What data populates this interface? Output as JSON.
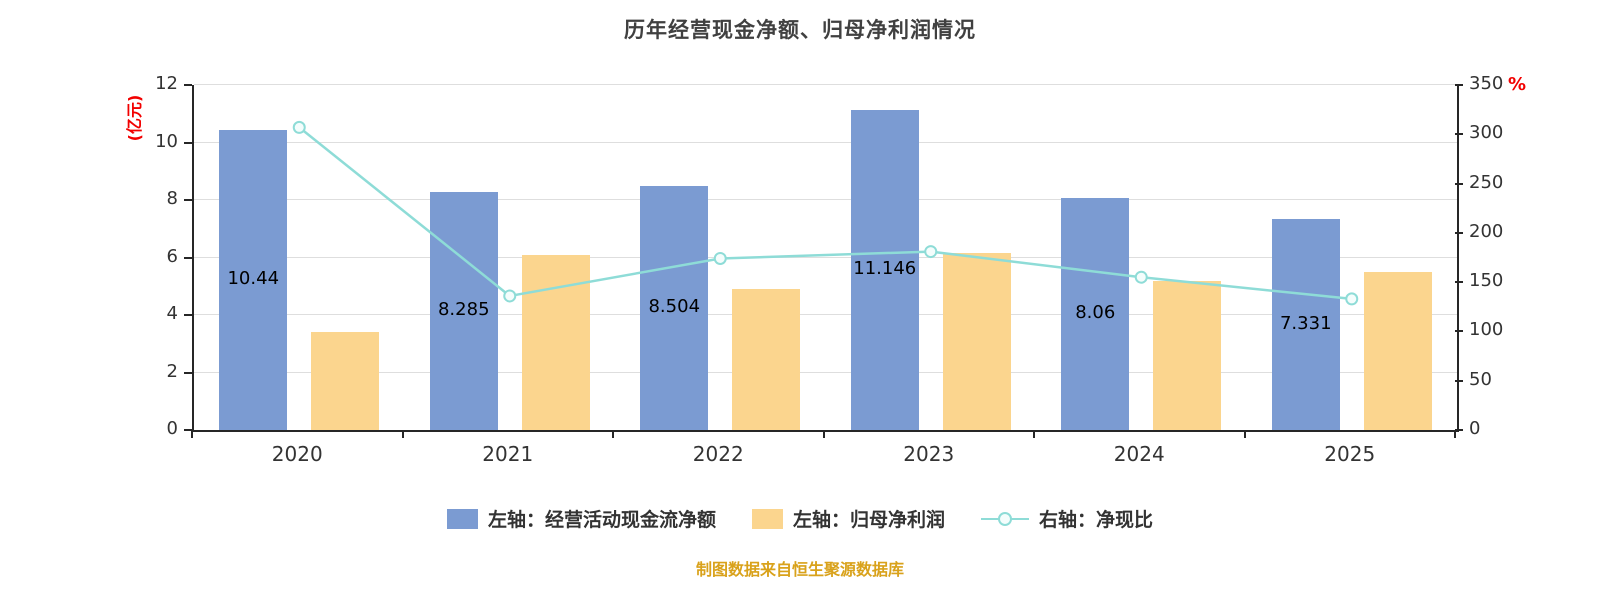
{
  "title": "历年经营现金净额、归母净利润情况",
  "footer": "制图数据来自恒生聚源数据库",
  "left_axis": {
    "title": "(亿元)",
    "ticks": [
      0,
      2,
      4,
      6,
      8,
      10,
      12
    ],
    "max": 12
  },
  "right_axis": {
    "title": "%",
    "ticks": [
      0,
      50,
      100,
      150,
      200,
      250,
      300,
      350
    ],
    "max": 350
  },
  "chart_data": {
    "type": "bar+line",
    "categories": [
      "2020",
      "2021",
      "2022",
      "2023",
      "2024",
      "2025"
    ],
    "series": [
      {
        "name": "左轴：经营活动现金流净额",
        "type": "bar",
        "axis": "left",
        "color": "#7b9bd2",
        "values": [
          10.44,
          8.285,
          8.504,
          11.146,
          8.06,
          7.331
        ],
        "labels": [
          "10.44",
          "8.285",
          "8.504",
          "11.146",
          "8.06",
          "7.331"
        ]
      },
      {
        "name": "左轴：归母净利润",
        "type": "bar",
        "axis": "left",
        "color": "#fbd58e",
        "values": [
          3.4,
          6.1,
          4.9,
          6.15,
          5.2,
          5.5
        ]
      },
      {
        "name": "右轴：净现比",
        "type": "line",
        "axis": "right",
        "color": "#8edcd7",
        "values": [
          307,
          136,
          174,
          181,
          155,
          133
        ]
      }
    ],
    "ylim_left": [
      0,
      12
    ],
    "ylim_right": [
      0,
      350
    ],
    "grid": true,
    "legend_position": "bottom"
  },
  "colors": {
    "bar_cashflow": "#7b9bd2",
    "bar_netprofit": "#fbd58e",
    "ratio_line": "#8edcd7",
    "axis_title": "#f20000",
    "title_text": "#404040",
    "footer_text": "#d9a21b"
  }
}
